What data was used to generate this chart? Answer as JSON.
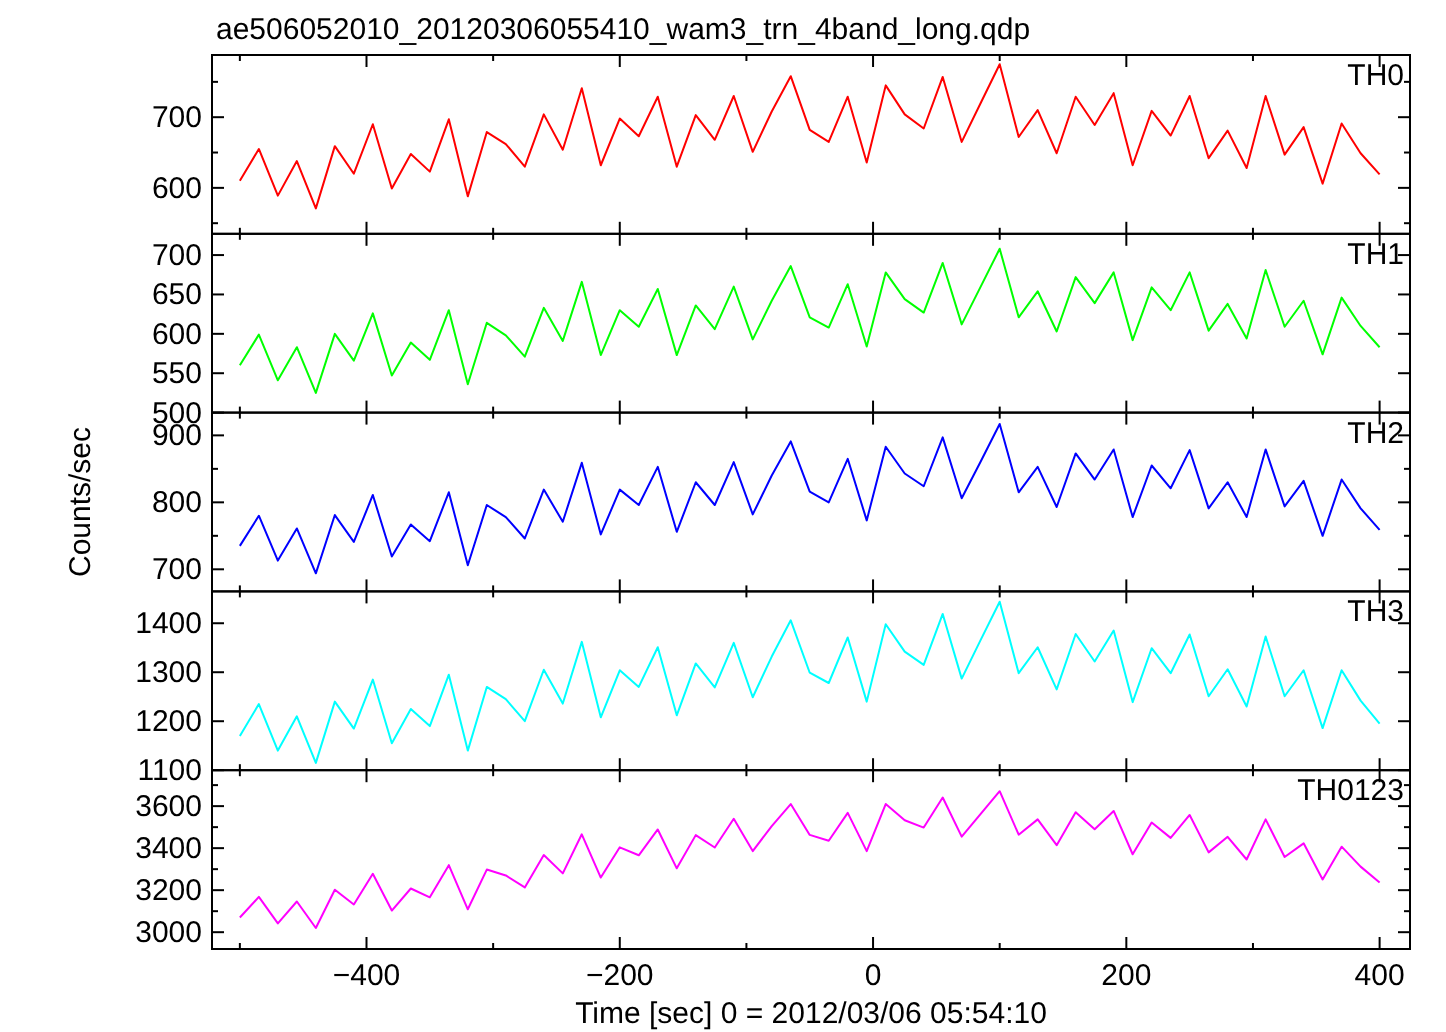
{
  "chart_data": [
    {
      "type": "line",
      "title": "ae506052010_20120306055410_wam3_trn_4band_long.qdp",
      "tick_labels": "y",
      "xlim": [
        -522,
        424
      ],
      "xticks": [
        {
          "value": -500,
          "label": null
        },
        -400,
        {
          "value": -300,
          "label": null
        },
        -200,
        {
          "value": -100,
          "label": null
        },
        0,
        {
          "value": 100,
          "label": null
        },
        200,
        {
          "value": 300,
          "label": null
        },
        400
      ],
      "ylim": [
        535,
        788
      ],
      "yticks": [
        {
          "value": 550,
          "label": null
        },
        600,
        {
          "value": 650,
          "label": null
        },
        700,
        {
          "value": 750,
          "label": null
        }
      ],
      "x": [
        -500,
        -485,
        -470,
        -455,
        -440,
        -425,
        -410,
        -395,
        -380,
        -365,
        -350,
        -335,
        -320,
        -305,
        -290,
        -275,
        -260,
        -245,
        -230,
        -215,
        -200,
        -185,
        -170,
        -155,
        -140,
        -125,
        -110,
        -95,
        -80,
        -65,
        -50,
        -35,
        -20,
        -5,
        10,
        25,
        40,
        55,
        70,
        85,
        100,
        115,
        130,
        145,
        160,
        175,
        190,
        205,
        220,
        235,
        250,
        265,
        280,
        295,
        310,
        325,
        340,
        355,
        370,
        385,
        400
      ],
      "series": [
        {
          "name": "TH0",
          "color": "#ff0000",
          "values": [
            610,
            655,
            589,
            638,
            571,
            659,
            620,
            690,
            599,
            648,
            623,
            697,
            588,
            679,
            662,
            630,
            704,
            654,
            741,
            632,
            698,
            673,
            729,
            630,
            703,
            668,
            730,
            651,
            708,
            758,
            682,
            665,
            729,
            636,
            745,
            704,
            684,
            757,
            665,
            720,
            775,
            672,
            710,
            649,
            729,
            689,
            734,
            632,
            709,
            674,
            730,
            642,
            681,
            628,
            730,
            647,
            686,
            606,
            691,
            649,
            619
          ]
        }
      ]
    },
    {
      "type": "line",
      "ylabel": null,
      "tick_labels": "y",
      "xlim": [
        -522,
        424
      ],
      "xticks": [
        {
          "value": -500,
          "label": null
        },
        -400,
        {
          "value": -300,
          "label": null
        },
        -200,
        {
          "value": -100,
          "label": null
        },
        0,
        {
          "value": 100,
          "label": null
        },
        200,
        {
          "value": 300,
          "label": null
        },
        400
      ],
      "ylim": [
        500,
        727
      ],
      "yticks": [
        500,
        550,
        600,
        650,
        700
      ],
      "x": [
        -500,
        -485,
        -470,
        -455,
        -440,
        -425,
        -410,
        -395,
        -380,
        -365,
        -350,
        -335,
        -320,
        -305,
        -290,
        -275,
        -260,
        -245,
        -230,
        -215,
        -200,
        -185,
        -170,
        -155,
        -140,
        -125,
        -110,
        -95,
        -80,
        -65,
        -50,
        -35,
        -20,
        -5,
        10,
        25,
        40,
        55,
        70,
        85,
        100,
        115,
        130,
        145,
        160,
        175,
        190,
        205,
        220,
        235,
        250,
        265,
        280,
        295,
        310,
        325,
        340,
        355,
        370,
        385,
        400
      ],
      "series": [
        {
          "name": "TH1",
          "color": "#00ff00",
          "values": [
            560,
            599,
            541,
            583,
            525,
            600,
            566,
            626,
            547,
            589,
            567,
            630,
            536,
            614,
            598,
            571,
            633,
            591,
            666,
            573,
            630,
            609,
            657,
            573,
            636,
            606,
            660,
            593,
            642,
            686,
            621,
            608,
            663,
            584,
            678,
            644,
            627,
            690,
            612,
            660,
            708,
            621,
            654,
            603,
            672,
            639,
            678,
            592,
            659,
            630,
            678,
            604,
            638,
            594,
            681,
            609,
            642,
            574,
            646,
            610,
            583
          ]
        }
      ]
    },
    {
      "type": "line",
      "ylabel": "Counts/sec",
      "tick_labels": "y",
      "xlim": [
        -522,
        424
      ],
      "xticks": [
        {
          "value": -500,
          "label": null
        },
        -400,
        {
          "value": -300,
          "label": null
        },
        -200,
        {
          "value": -100,
          "label": null
        },
        0,
        {
          "value": 100,
          "label": null
        },
        200,
        {
          "value": 300,
          "label": null
        },
        400
      ],
      "ylim": [
        667,
        934
      ],
      "yticks": [
        700,
        {
          "value": 750,
          "label": null
        },
        800,
        {
          "value": 850,
          "label": null
        },
        900
      ],
      "x": [
        -500,
        -485,
        -470,
        -455,
        -440,
        -425,
        -410,
        -395,
        -380,
        -365,
        -350,
        -335,
        -320,
        -305,
        -290,
        -275,
        -260,
        -245,
        -230,
        -215,
        -200,
        -185,
        -170,
        -155,
        -140,
        -125,
        -110,
        -95,
        -80,
        -65,
        -50,
        -35,
        -20,
        -5,
        10,
        25,
        40,
        55,
        70,
        85,
        100,
        115,
        130,
        145,
        160,
        175,
        190,
        205,
        220,
        235,
        250,
        265,
        280,
        295,
        310,
        325,
        340,
        355,
        370,
        385,
        400
      ],
      "series": [
        {
          "name": "TH2",
          "color": "#0000ff",
          "values": [
            735,
            780,
            713,
            761,
            694,
            781,
            741,
            811,
            719,
            767,
            742,
            815,
            706,
            796,
            778,
            746,
            819,
            771,
            859,
            752,
            819,
            796,
            853,
            756,
            830,
            796,
            860,
            782,
            840,
            891,
            816,
            800,
            865,
            773,
            883,
            843,
            824,
            897,
            806,
            861,
            917,
            815,
            853,
            793,
            873,
            834,
            879,
            778,
            855,
            821,
            878,
            791,
            830,
            778,
            879,
            794,
            832,
            750,
            834,
            791,
            759
          ]
        }
      ]
    },
    {
      "type": "line",
      "tick_labels": "y",
      "xlim": [
        -522,
        424
      ],
      "xticks": [
        {
          "value": -500,
          "label": null
        },
        -400,
        {
          "value": -300,
          "label": null
        },
        -200,
        {
          "value": -100,
          "label": null
        },
        0,
        {
          "value": 100,
          "label": null
        },
        200,
        {
          "value": 300,
          "label": null
        },
        400
      ],
      "ylim": [
        1100,
        1465
      ],
      "yticks": [
        1100,
        1200,
        1300,
        1400
      ],
      "x": [
        -500,
        -485,
        -470,
        -455,
        -440,
        -425,
        -410,
        -395,
        -380,
        -365,
        -350,
        -335,
        -320,
        -305,
        -290,
        -275,
        -260,
        -245,
        -230,
        -215,
        -200,
        -185,
        -170,
        -155,
        -140,
        -125,
        -110,
        -95,
        -80,
        -65,
        -50,
        -35,
        -20,
        -5,
        10,
        25,
        40,
        55,
        70,
        85,
        100,
        115,
        130,
        145,
        160,
        175,
        190,
        205,
        220,
        235,
        250,
        265,
        280,
        295,
        310,
        325,
        340,
        355,
        370,
        385,
        400
      ],
      "series": [
        {
          "name": "TH3",
          "color": "#00ffff",
          "values": [
            1170,
            1235,
            1140,
            1210,
            1115,
            1240,
            1185,
            1285,
            1155,
            1225,
            1190,
            1295,
            1140,
            1270,
            1245,
            1200,
            1305,
            1236,
            1362,
            1208,
            1304,
            1270,
            1351,
            1212,
            1318,
            1269,
            1360,
            1249,
            1332,
            1406,
            1299,
            1278,
            1371,
            1240,
            1398,
            1342,
            1315,
            1419,
            1287,
            1366,
            1444,
            1298,
            1351,
            1265,
            1378,
            1322,
            1385,
            1239,
            1349,
            1298,
            1377,
            1251,
            1306,
            1230,
            1373,
            1251,
            1304,
            1186,
            1304,
            1242,
            1195
          ]
        }
      ]
    },
    {
      "type": "line",
      "xlabel": "Time [sec] 0 = 2012/03/06 05:54:10",
      "xlim": [
        -522,
        424
      ],
      "xticks": [
        {
          "value": -500,
          "label": null
        },
        -400,
        {
          "value": -300,
          "label": null
        },
        -200,
        {
          "value": -100,
          "label": null
        },
        0,
        {
          "value": 100,
          "label": null
        },
        200,
        {
          "value": 300,
          "label": null
        },
        400
      ],
      "ylim": [
        2920,
        3771
      ],
      "yticks": [
        3000,
        {
          "value": 3100,
          "label": null
        },
        3200,
        {
          "value": 3300,
          "label": null
        },
        3400,
        {
          "value": 3500,
          "label": null
        },
        3600,
        {
          "value": 3700,
          "label": null
        }
      ],
      "x": [
        -500,
        -485,
        -470,
        -455,
        -440,
        -425,
        -410,
        -395,
        -380,
        -365,
        -350,
        -335,
        -320,
        -305,
        -290,
        -275,
        -260,
        -245,
        -230,
        -215,
        -200,
        -185,
        -170,
        -155,
        -140,
        -125,
        -110,
        -95,
        -80,
        -65,
        -50,
        -35,
        -20,
        -5,
        10,
        25,
        40,
        55,
        70,
        85,
        100,
        115,
        130,
        145,
        160,
        175,
        190,
        205,
        220,
        235,
        250,
        265,
        280,
        295,
        310,
        325,
        340,
        355,
        370,
        385,
        400
      ],
      "series": [
        {
          "name": "TH0123",
          "color": "#ff00ff",
          "values": [
            3070,
            3168,
            3042,
            3146,
            3020,
            3202,
            3132,
            3278,
            3103,
            3208,
            3166,
            3319,
            3109,
            3298,
            3270,
            3213,
            3367,
            3280,
            3466,
            3260,
            3404,
            3366,
            3489,
            3304,
            3462,
            3403,
            3540,
            3386,
            3505,
            3610,
            3463,
            3435,
            3568,
            3386,
            3610,
            3533,
            3498,
            3641,
            3455,
            3563,
            3671,
            3464,
            3537,
            3414,
            3571,
            3490,
            3577,
            3371,
            3522,
            3449,
            3558,
            3380,
            3454,
            3346,
            3537,
            3358,
            3423,
            3251,
            3407,
            3312,
            3237
          ]
        }
      ]
    }
  ]
}
